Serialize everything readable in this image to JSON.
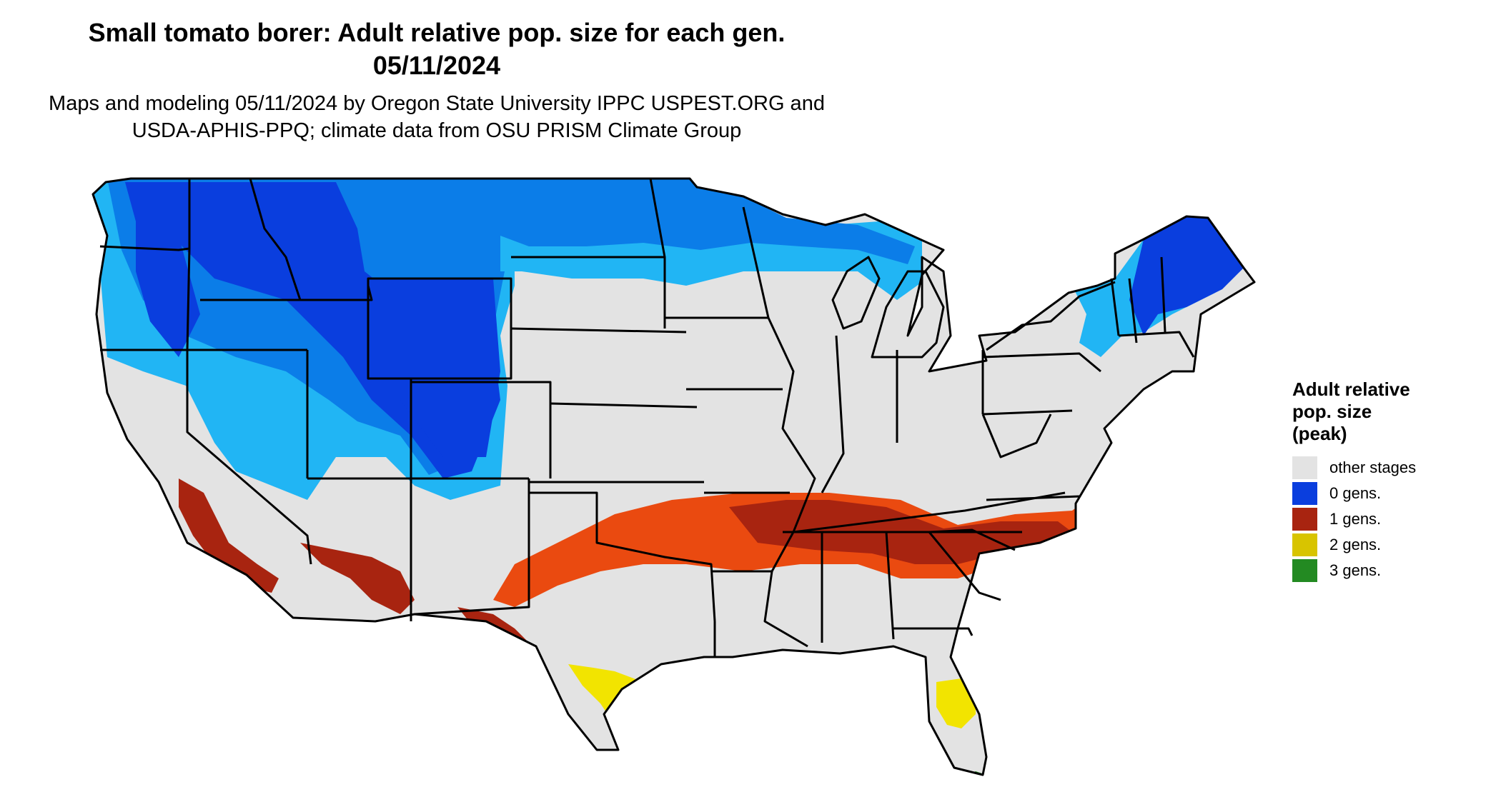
{
  "title": {
    "line1": "Small tomato borer: Adult relative pop. size for each gen.",
    "line2": "05/11/2024"
  },
  "subtitle": {
    "line1": "Maps and modeling 05/11/2024 by Oregon State University IPPC USPEST.ORG and",
    "line2": "USDA-APHIS-PPQ; climate data from OSU PRISM Climate Group"
  },
  "legend": {
    "title_lines": [
      "Adult relative",
      "pop. size",
      "(peak)"
    ],
    "items": [
      {
        "label": "other stages",
        "color": "#e3e3e3"
      },
      {
        "label": "0 gens.",
        "color": "#0a3ede"
      },
      {
        "label": "1 gens.",
        "color": "#a82410"
      },
      {
        "label": "2 gens.",
        "color": "#d8c400"
      },
      {
        "label": "3 gens.",
        "color": "#238a22"
      }
    ]
  },
  "colors": {
    "land": "#e3e3e3",
    "zero_dark": "#0a3ede",
    "zero_mid": "#0b7de8",
    "zero_light": "#21b5f4",
    "one_dark": "#a82410",
    "one_light": "#ea4a10",
    "two": "#f2e400",
    "three": "#238a22",
    "border": "#000000"
  }
}
